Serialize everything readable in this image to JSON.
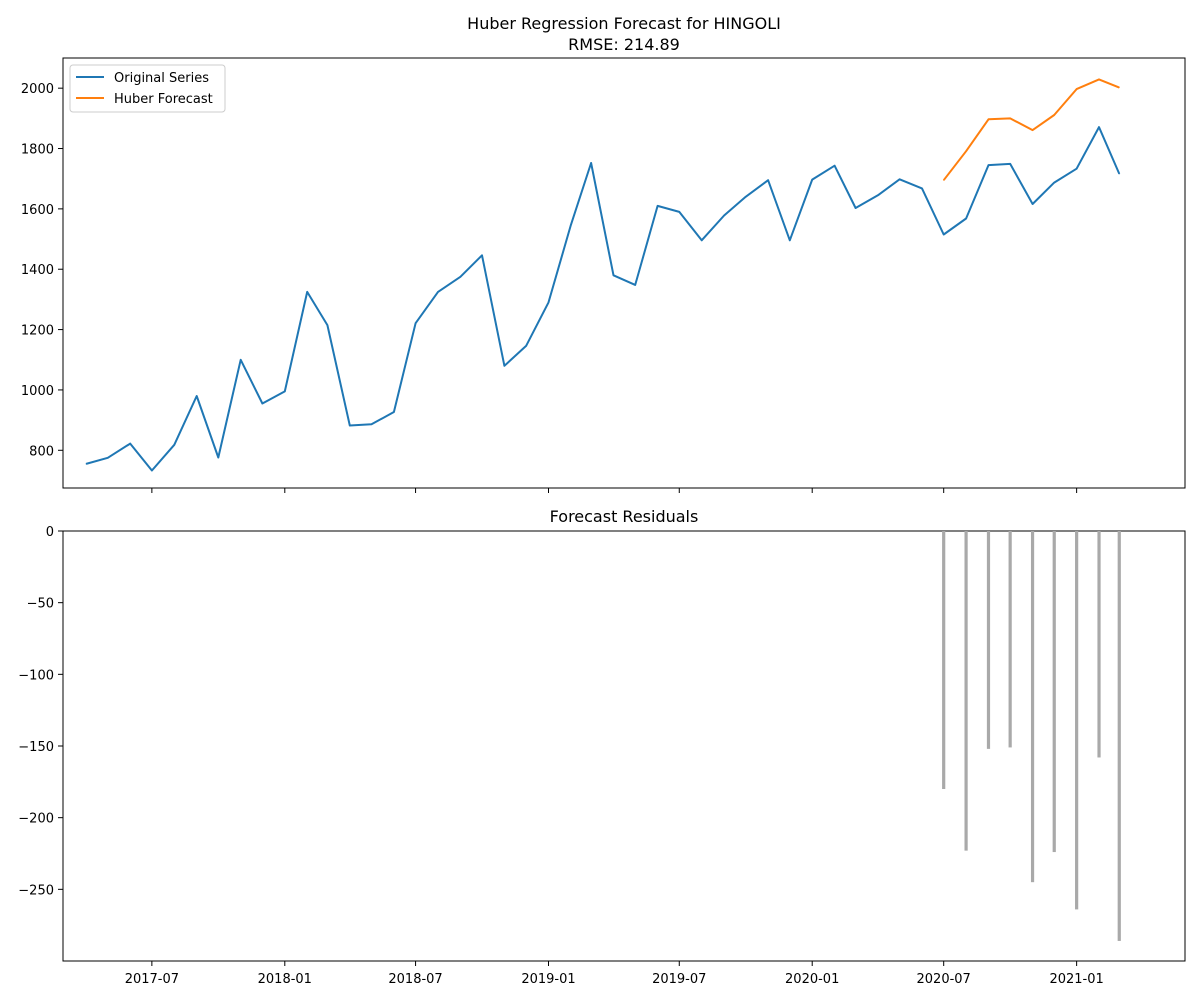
{
  "chart_data": [
    {
      "type": "line",
      "title": "Huber Regression Forecast for HINGOLI",
      "subtitle": "RMSE: 214.89",
      "xlabel": "",
      "ylabel": "",
      "xlim": [
        "2017-02-28",
        "2021-05-31"
      ],
      "ylim": [
        675,
        2100
      ],
      "yticks": [
        800,
        1000,
        1200,
        1400,
        1600,
        1800,
        2000
      ],
      "grid": false,
      "legend_position": "top-left",
      "series": [
        {
          "name": "Original Series",
          "color": "#1f77b4",
          "x": [
            "2017-04-01",
            "2017-05-01",
            "2017-06-01",
            "2017-07-01",
            "2017-08-01",
            "2017-09-01",
            "2017-10-01",
            "2017-11-01",
            "2017-12-01",
            "2018-01-01",
            "2018-02-01",
            "2018-03-01",
            "2018-04-01",
            "2018-05-01",
            "2018-06-01",
            "2018-07-01",
            "2018-08-01",
            "2018-09-01",
            "2018-10-01",
            "2018-11-01",
            "2018-12-01",
            "2019-01-01",
            "2019-02-01",
            "2019-03-01",
            "2019-04-01",
            "2019-05-01",
            "2019-06-01",
            "2019-07-01",
            "2019-08-01",
            "2019-09-01",
            "2019-10-01",
            "2019-11-01",
            "2019-12-01",
            "2020-01-01",
            "2020-02-01",
            "2020-03-01",
            "2020-04-01",
            "2020-05-01",
            "2020-06-01",
            "2020-07-01",
            "2020-08-01",
            "2020-09-01",
            "2020-10-01",
            "2020-11-01",
            "2020-12-01",
            "2021-01-01",
            "2021-02-01",
            "2021-03-01"
          ],
          "values": [
            755,
            775,
            822,
            733,
            818,
            980,
            776,
            1100,
            955,
            995,
            1325,
            1215,
            882,
            886,
            927,
            1221,
            1325,
            1375,
            1446,
            1080,
            1146,
            1290,
            1547,
            1752,
            1380,
            1348,
            1610,
            1590,
            1496,
            1578,
            1640,
            1695,
            1496,
            1697,
            1743,
            1603,
            1645,
            1698,
            1668,
            1515,
            1568,
            1745,
            1749,
            1616,
            1687,
            1733,
            1871,
            1716
          ]
        },
        {
          "name": "Huber Forecast",
          "color": "#ff7f0e",
          "x": [
            "2020-07-01",
            "2020-08-01",
            "2020-09-01",
            "2020-10-01",
            "2020-11-01",
            "2020-12-01",
            "2021-01-01",
            "2021-02-01",
            "2021-03-01"
          ],
          "values": [
            1695,
            1791,
            1897,
            1900,
            1861,
            1911,
            1997,
            2029,
            2002
          ]
        }
      ]
    },
    {
      "type": "bar",
      "title": "Forecast Residuals",
      "xlabel": "",
      "ylabel": "",
      "xlim": [
        "2017-02-28",
        "2021-05-31"
      ],
      "ylim": [
        -300,
        0
      ],
      "yticks": [
        0,
        -50,
        -100,
        -150,
        -200,
        -250
      ],
      "xticks": [
        "2017-07-01",
        "2018-01-01",
        "2018-07-01",
        "2019-01-01",
        "2019-07-01",
        "2020-01-01",
        "2020-07-01",
        "2021-01-01"
      ],
      "xtick_labels": [
        "2017-07",
        "2018-01",
        "2018-07",
        "2019-01",
        "2019-07",
        "2020-01",
        "2020-07",
        "2021-01"
      ],
      "grid": false,
      "bar_color": "#a9a9a9",
      "x": [
        "2020-07-01",
        "2020-08-01",
        "2020-09-01",
        "2020-10-01",
        "2020-11-01",
        "2020-12-01",
        "2021-01-01",
        "2021-02-01",
        "2021-03-01"
      ],
      "values": [
        -180,
        -223,
        -152,
        -151,
        -245,
        -224,
        -264,
        -158,
        -286
      ]
    }
  ]
}
